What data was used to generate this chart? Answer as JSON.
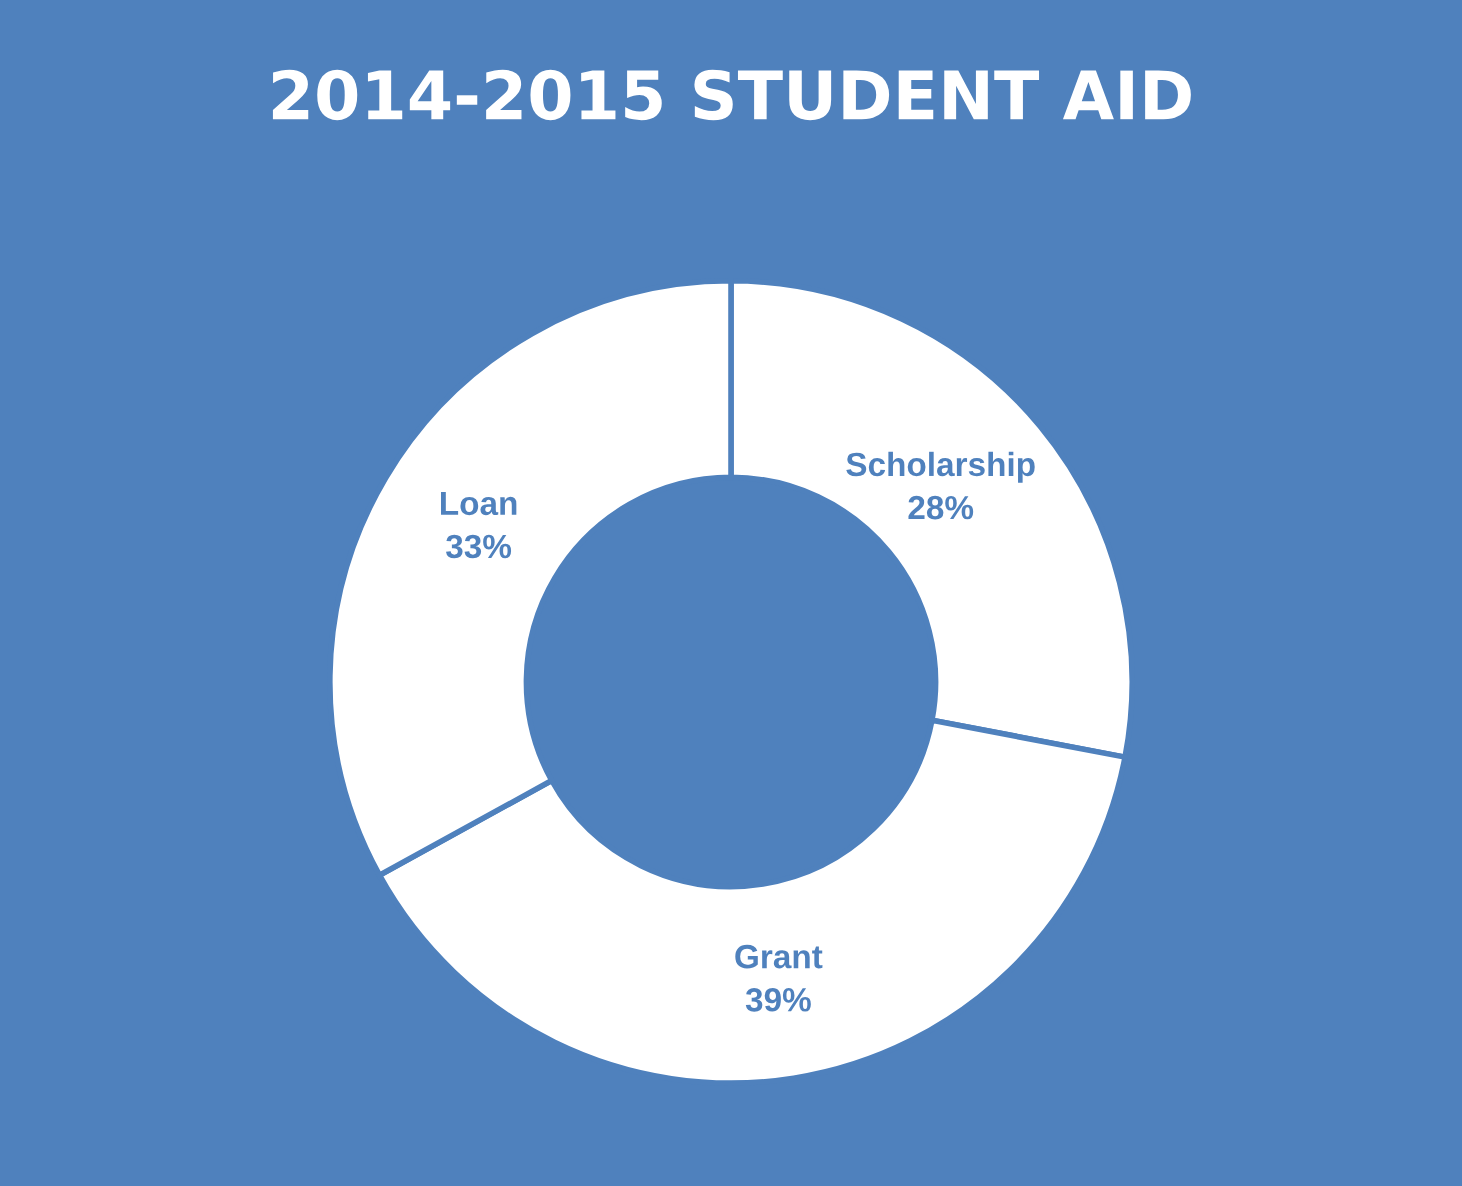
{
  "chart_data": {
    "type": "donut",
    "title": "2014-2015 STUDENT AID",
    "categories": [
      "Scholarship",
      "Grant",
      "Loan"
    ],
    "values": [
      28,
      39,
      33
    ],
    "colors": [
      "#ffffff",
      "#ffffff",
      "#ffffff"
    ],
    "value_labels": [
      "28%",
      "39%",
      "33%"
    ],
    "legend": false
  }
}
